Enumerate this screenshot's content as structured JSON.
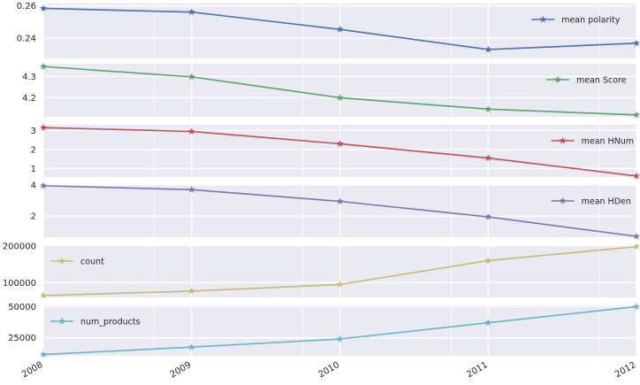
{
  "chart_data": {
    "type": "line",
    "x": [
      "2008",
      "2009",
      "2010",
      "2011",
      "2012"
    ],
    "xlim": [
      2008,
      2012
    ],
    "x_tick_labels": [
      "2008",
      "2009",
      "2010",
      "2011",
      "2012"
    ],
    "grid": true,
    "subplots": [
      {
        "series": [
          {
            "name": "mean polarity",
            "values": [
              0.2585,
              0.2562,
              0.2455,
              0.233,
              0.2369
            ],
            "color": "#4c72b0"
          }
        ],
        "ylim": [
          0.2275,
          0.2615
        ],
        "yticks": [
          0.24,
          0.26
        ],
        "ytick_labels": [
          "0.24",
          "0.26"
        ],
        "legend": "right"
      },
      {
        "series": [
          {
            "name": "mean Score",
            "values": [
              4.347,
              4.298,
              4.2,
              4.146,
              4.119
            ],
            "color": "#55a868"
          }
        ],
        "ylim": [
          4.11,
          4.36
        ],
        "yticks": [
          4.2,
          4.3
        ],
        "ytick_labels": [
          "4.2",
          "4.3"
        ],
        "legend": "right"
      },
      {
        "series": [
          {
            "name": "mean HNum",
            "values": [
              3.15,
              2.95,
              2.3,
              1.55,
              0.6
            ],
            "color": "#c44e52"
          }
        ],
        "ylim": [
          0.55,
          3.3
        ],
        "yticks": [
          1,
          2,
          3
        ],
        "ytick_labels": [
          "1",
          "2",
          "3"
        ],
        "legend": "right"
      },
      {
        "series": [
          {
            "name": "mean HDen",
            "values": [
              3.95,
              3.7,
              2.95,
              1.95,
              0.7
            ],
            "color": "#8172b2"
          }
        ],
        "ylim": [
          0.65,
          4.0
        ],
        "yticks": [
          2,
          4
        ],
        "ytick_labels": [
          "2",
          "4"
        ],
        "legend": "right"
      },
      {
        "series": [
          {
            "name": "count",
            "values": [
              65000,
              77000,
              95000,
              160000,
              198000
            ],
            "color": "#ccb974"
          }
        ],
        "ylim": [
          60000,
          202000
        ],
        "yticks": [
          100000,
          200000
        ],
        "ytick_labels": [
          "100000",
          "200000"
        ],
        "legend": "left"
      },
      {
        "series": [
          {
            "name": "num_products",
            "values": [
              11500,
              17500,
              24000,
              37000,
              50000
            ],
            "color": "#64b5cd"
          }
        ],
        "ylim": [
          10500,
          51000
        ],
        "yticks": [
          25000,
          50000
        ],
        "ytick_labels": [
          "25000",
          "50000"
        ],
        "legend": "left"
      }
    ]
  }
}
